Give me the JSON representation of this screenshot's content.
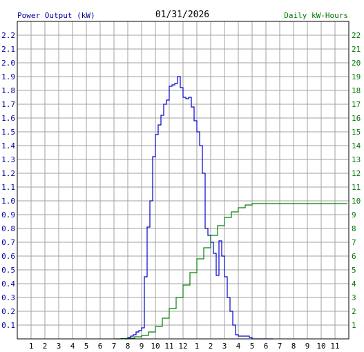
{
  "chart_data": {
    "type": "line",
    "title": "01/31/2026",
    "left_axis_label": "Power Output (kW)",
    "right_axis_label": "Daily kW-Hours",
    "x_ticks": [
      "1",
      "2",
      "3",
      "4",
      "5",
      "6",
      "7",
      "8",
      "9",
      "10",
      "11",
      "12",
      "1",
      "2",
      "3",
      "4",
      "5",
      "6",
      "7",
      "8",
      "9",
      "10",
      "11"
    ],
    "left_ticks": [
      "0.1",
      "0.2",
      "0.3",
      "0.4",
      "0.5",
      "0.6",
      "0.7",
      "0.8",
      "0.9",
      "1.0",
      "1.1",
      "1.2",
      "1.3",
      "1.4",
      "1.5",
      "1.6",
      "1.7",
      "1.8",
      "1.9",
      "2.0",
      "2.1",
      "2.2"
    ],
    "right_ticks": [
      "1",
      "2",
      "3",
      "4",
      "5",
      "6",
      "7",
      "8",
      "9",
      "10",
      "11",
      "12",
      "13",
      "14",
      "15",
      "16",
      "17",
      "18",
      "19",
      "20",
      "21",
      "22"
    ],
    "x_range_hours": [
      0,
      24
    ],
    "left_range": [
      0,
      2.3
    ],
    "right_range": [
      0,
      23
    ],
    "grid": true,
    "colors": {
      "power": "#0000cc",
      "energy": "#008000",
      "left_label": "#000099",
      "right_label": "#007700",
      "grid": "#a0a0a0"
    },
    "series": [
      {
        "name": "Power Output (kW)",
        "axis": "left",
        "x": [
          7.8,
          8.0,
          8.2,
          8.4,
          8.6,
          8.8,
          9.0,
          9.2,
          9.4,
          9.6,
          9.8,
          10.0,
          10.2,
          10.4,
          10.6,
          10.8,
          11.0,
          11.2,
          11.4,
          11.6,
          11.8,
          12.0,
          12.2,
          12.4,
          12.6,
          12.8,
          13.0,
          13.2,
          13.4,
          13.6,
          13.8,
          14.0,
          14.2,
          14.4,
          14.6,
          14.8,
          15.0,
          15.2,
          15.4,
          15.6,
          15.8,
          16.0,
          16.1,
          16.2,
          16.4,
          16.6,
          16.8,
          17.0,
          17.2,
          17.4,
          17.6,
          17.8,
          18.0,
          18.2,
          18.4,
          18.5
        ],
        "y": [
          0.0,
          0.01,
          0.02,
          0.03,
          0.05,
          0.06,
          0.08,
          0.45,
          0.81,
          1.0,
          1.32,
          1.48,
          1.55,
          1.62,
          1.7,
          1.73,
          1.83,
          1.84,
          1.85,
          1.9,
          1.82,
          1.75,
          1.74,
          1.75,
          1.68,
          1.58,
          1.5,
          1.4,
          1.2,
          0.8,
          0.75,
          0.7,
          0.62,
          0.46,
          0.71,
          0.6,
          0.45,
          0.3,
          0.2,
          0.1,
          0.03,
          0.02,
          0.02,
          0.02,
          0.02,
          0.02,
          0.01,
          0.0,
          0.0,
          0.0,
          0.0,
          0.0,
          0.0,
          0.0,
          0.0,
          0.0
        ]
      },
      {
        "name": "Daily kW-Hours",
        "axis": "right",
        "x": [
          7.0,
          7.5,
          8.0,
          8.5,
          9.0,
          9.5,
          10.0,
          10.5,
          11.0,
          11.5,
          12.0,
          12.5,
          13.0,
          13.5,
          14.0,
          14.5,
          15.0,
          15.5,
          16.0,
          16.5,
          17.0,
          17.2,
          17.5,
          18.0,
          20.0,
          22.0,
          23.9
        ],
        "y": [
          0.0,
          0.02,
          0.05,
          0.15,
          0.25,
          0.5,
          0.9,
          1.5,
          2.2,
          3.0,
          3.9,
          4.8,
          5.8,
          6.6,
          7.5,
          8.2,
          8.8,
          9.2,
          9.5,
          9.7,
          9.8,
          9.8,
          9.8,
          9.8,
          9.8,
          9.8,
          9.8
        ]
      }
    ]
  }
}
